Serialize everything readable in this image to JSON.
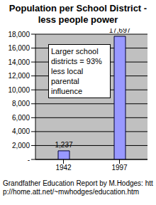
{
  "chart_data": {
    "type": "bar",
    "title": "Population per School District - less people power",
    "categories": [
      "1942",
      "1997"
    ],
    "values": [
      1237,
      17697
    ],
    "value_labels": [
      "1,237",
      "17,697"
    ],
    "data_labels": true,
    "color": "#9999ff",
    "ylim": [
      0,
      18000
    ],
    "yticks": [
      {
        "value": 0,
        "label": "-"
      },
      {
        "value": 2000,
        "label": "2,000"
      },
      {
        "value": 4000,
        "label": "4,000"
      },
      {
        "value": 6000,
        "label": "6,000"
      },
      {
        "value": 8000,
        "label": "8,000"
      },
      {
        "value": 10000,
        "label": "10,000"
      },
      {
        "value": 12000,
        "label": "12,000"
      },
      {
        "value": 14000,
        "label": "14,000"
      },
      {
        "value": 16000,
        "label": "16,000"
      },
      {
        "value": 18000,
        "label": "18,000"
      }
    ],
    "grid": true,
    "annotation": "Larger school districts = 93% less local parental influence",
    "footer": "Grandfather Education Report by M.Hodges: http://home.att.net/~mwhodges/education.htm"
  }
}
